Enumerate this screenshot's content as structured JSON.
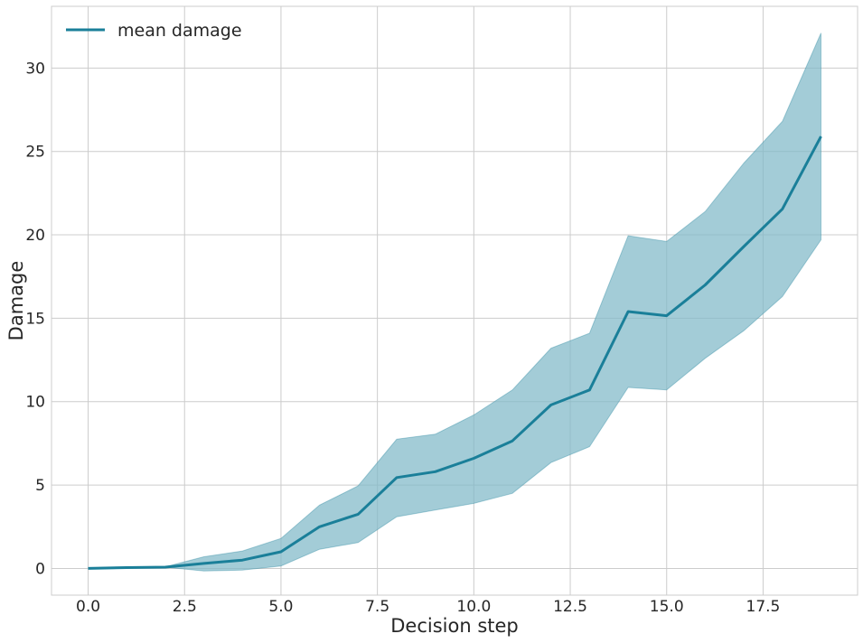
{
  "chart_data": {
    "type": "line",
    "title": "",
    "xlabel": "Decision step",
    "ylabel": "Damage",
    "xlim": [
      -0.95,
      19.95
    ],
    "ylim": [
      -1.6,
      33.7
    ],
    "xticks": [
      0.0,
      2.5,
      5.0,
      7.5,
      10.0,
      12.5,
      15.0,
      17.5
    ],
    "xtick_labels": [
      "0.0",
      "2.5",
      "5.0",
      "7.5",
      "10.0",
      "12.5",
      "15.0",
      "17.5"
    ],
    "yticks": [
      0,
      5,
      10,
      15,
      20,
      25,
      30
    ],
    "ytick_labels": [
      "0",
      "5",
      "10",
      "15",
      "20",
      "25",
      "30"
    ],
    "grid": true,
    "legend_position": "top-left",
    "series": [
      {
        "name": "mean damage",
        "color": "#1a7f99",
        "band_color": "#7fb8c8",
        "x": [
          0,
          1,
          2,
          3,
          4,
          5,
          6,
          7,
          8,
          9,
          10,
          11,
          12,
          13,
          14,
          15,
          16,
          17,
          18,
          19
        ],
        "y": [
          0.0,
          0.05,
          0.08,
          0.3,
          0.5,
          1.0,
          2.5,
          3.25,
          5.45,
          5.8,
          6.6,
          7.65,
          9.8,
          10.7,
          15.4,
          15.15,
          17.0,
          19.3,
          21.55,
          25.9
        ],
        "upper": [
          0.0,
          0.05,
          0.1,
          0.7,
          1.05,
          1.8,
          3.8,
          4.95,
          7.75,
          8.05,
          9.2,
          10.7,
          13.2,
          14.1,
          19.95,
          19.6,
          21.4,
          24.3,
          26.8,
          32.1
        ],
        "lower": [
          0.0,
          0.05,
          0.08,
          -0.15,
          -0.1,
          0.15,
          1.15,
          1.55,
          3.1,
          3.5,
          3.9,
          4.5,
          6.35,
          7.3,
          10.85,
          10.7,
          12.6,
          14.25,
          16.3,
          19.7
        ]
      }
    ]
  }
}
